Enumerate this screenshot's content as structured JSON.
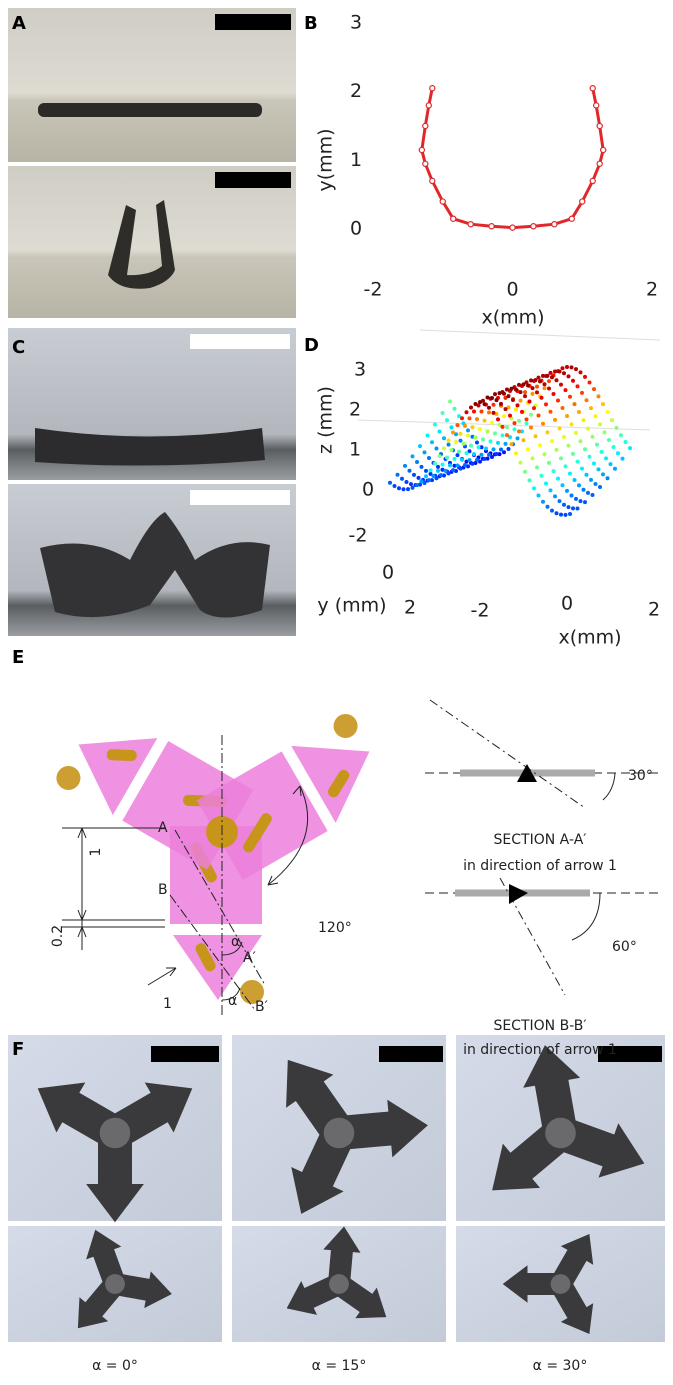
{
  "panel_labels": [
    "A",
    "B",
    "C",
    "D",
    "E",
    "F"
  ],
  "panel_b": {
    "xlabel": "x(mm)",
    "ylabel": "y(mm)",
    "xlim": [
      -2,
      2
    ],
    "ylim": [
      0,
      3
    ],
    "xticks": [
      -2,
      0,
      2
    ],
    "yticks": [
      0,
      1,
      2,
      3
    ],
    "color": "#e0282a",
    "x": [
      -1.15,
      -1.2,
      -1.25,
      -1.3,
      -1.25,
      -1.15,
      -1.0,
      -0.85,
      -0.6,
      -0.3,
      0,
      0.3,
      0.6,
      0.85,
      1.0,
      1.15,
      1.25,
      1.3,
      1.25,
      1.2,
      1.15
    ],
    "y": [
      2.05,
      1.8,
      1.5,
      1.15,
      0.95,
      0.7,
      0.4,
      0.15,
      0.07,
      0.04,
      0.02,
      0.04,
      0.07,
      0.15,
      0.4,
      0.7,
      0.95,
      1.15,
      1.5,
      1.8,
      2.05
    ]
  },
  "panel_d": {
    "xlabel": "x(mm)",
    "ylabel": "y (mm)",
    "zlabel": "z (mm)",
    "xticks": [
      -2,
      0,
      2
    ],
    "yticks": [
      -2,
      0,
      2
    ],
    "zticks": [
      0,
      1,
      2,
      3
    ]
  },
  "panel_e": {
    "points": {
      "a": "A",
      "a_prime": "A′",
      "b": "B",
      "b_prime": "B′"
    },
    "dimensions": [
      "1",
      "0.2"
    ],
    "arrow": "1",
    "angle_symbols": [
      "α",
      "α"
    ],
    "arm_angle": "120°",
    "sections": [
      {
        "angle": "30°",
        "title": "SECTION A-A′",
        "caption": "in direction of arrow 1"
      },
      {
        "angle": "60°",
        "title": "SECTION B-B′",
        "caption": "in direction of arrow 1"
      }
    ]
  },
  "panel_f": {
    "captions": [
      "α = 0°",
      "α = 15°",
      "α = 30°"
    ]
  }
}
